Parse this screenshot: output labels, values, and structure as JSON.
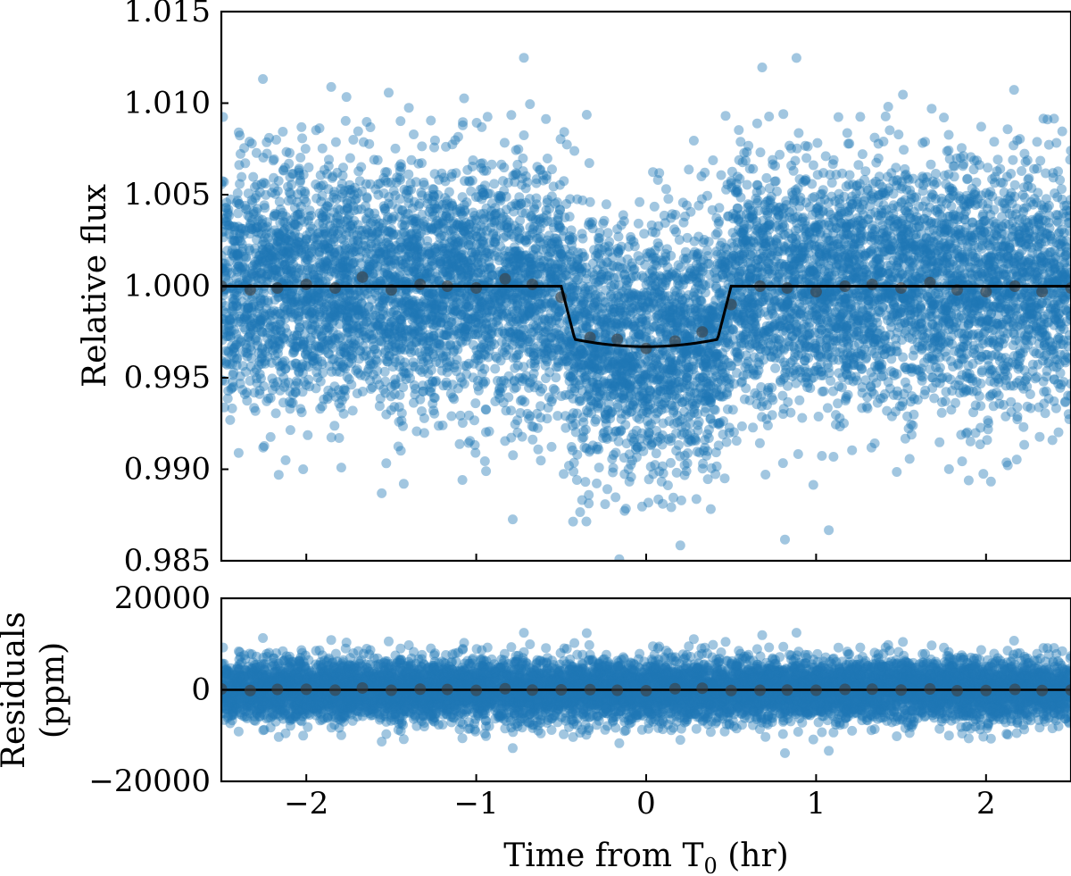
{
  "chart_data": [
    {
      "type": "scatter",
      "panel": "top",
      "xlim": [
        -2.5,
        2.5
      ],
      "ylim": [
        0.985,
        1.015
      ],
      "ylabel": "Relative flux",
      "yticks": [
        "0.985",
        "0.990",
        "0.995",
        "1.000",
        "1.005",
        "1.010",
        "1.015"
      ],
      "point_color": "#1f77b4",
      "binned_color": "#404040",
      "model_color": "#000000",
      "scatter_sigma": 0.0033,
      "scatter_count": 9000,
      "transit": {
        "center": 0.0,
        "half_duration": 0.5,
        "ingress": 0.08,
        "depth": 0.0033,
        "baseline": 1.0
      },
      "binned": {
        "x": [
          -2.5,
          -2.33,
          -2.17,
          -2.0,
          -1.83,
          -1.67,
          -1.5,
          -1.33,
          -1.17,
          -1.0,
          -0.83,
          -0.67,
          -0.5,
          -0.33,
          -0.17,
          0.0,
          0.17,
          0.33,
          0.5,
          0.67,
          0.83,
          1.0,
          1.17,
          1.33,
          1.5,
          1.67,
          1.83,
          2.0,
          2.17,
          2.33,
          2.5
        ],
        "y": [
          1.0,
          0.9998,
          0.9999,
          1.0001,
          0.9999,
          1.0005,
          0.9998,
          1.0001,
          1.0,
          0.9999,
          1.0004,
          1.0001,
          0.9994,
          0.9972,
          0.9971,
          0.9966,
          0.997,
          0.9975,
          0.999,
          1.0,
          0.9999,
          0.9997,
          1.0,
          1.0001,
          0.9999,
          1.0002,
          0.9998,
          0.9997,
          1.0,
          0.9997,
          0.9999
        ]
      }
    },
    {
      "type": "scatter",
      "panel": "bottom",
      "xlim": [
        -2.5,
        2.5
      ],
      "ylim": [
        -20000,
        20000
      ],
      "ylabel_line1": "Residuals",
      "ylabel_line2": "(ppm)",
      "yticks": [
        "20000",
        "0",
        "−20000"
      ],
      "xlabel_main": "Time from T",
      "xlabel_sub": "0",
      "xlabel_unit": " (hr)",
      "xticks": [
        "−2",
        "−1",
        "0",
        "1",
        "2"
      ],
      "point_color": "#1f77b4",
      "binned_color": "#404040",
      "model_color": "#000000",
      "scatter_sigma": 3300,
      "scatter_count": 9000,
      "binned": {
        "x": [
          -2.5,
          -2.33,
          -2.17,
          -2.0,
          -1.83,
          -1.67,
          -1.5,
          -1.33,
          -1.17,
          -1.0,
          -0.83,
          -0.67,
          -0.5,
          -0.33,
          -0.17,
          0.0,
          0.17,
          0.33,
          0.5,
          0.67,
          0.83,
          1.0,
          1.17,
          1.33,
          1.5,
          1.67,
          1.83,
          2.0,
          2.17,
          2.33,
          2.5
        ],
        "y": [
          200,
          -150,
          100,
          120,
          -80,
          400,
          -100,
          150,
          80,
          -120,
          250,
          -50,
          0,
          50,
          -100,
          -200,
          250,
          350,
          -150,
          -100,
          -50,
          -100,
          100,
          150,
          -50,
          200,
          -200,
          -150,
          100,
          -150,
          -50
        ]
      }
    }
  ]
}
